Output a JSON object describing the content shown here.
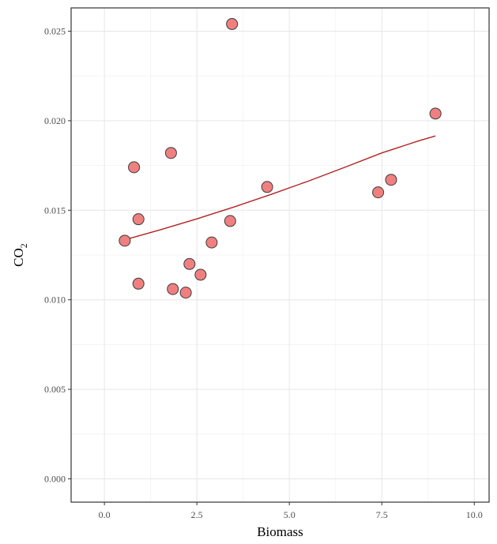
{
  "chart_data": {
    "type": "scatter",
    "title": "",
    "xlabel": "Biomass",
    "ylabel": "CO",
    "ylabel_subscript": "2",
    "xlim": [
      -0.9,
      10.4
    ],
    "ylim": [
      -0.0013,
      0.0263
    ],
    "x_ticks": [
      0.0,
      2.5,
      5.0,
      7.5,
      10.0
    ],
    "x_tick_labels": [
      "0.0",
      "2.5",
      "5.0",
      "7.5",
      "10.0"
    ],
    "y_ticks": [
      0.0,
      0.005,
      0.01,
      0.015,
      0.02,
      0.025
    ],
    "y_tick_labels": [
      "0.000",
      "0.005",
      "0.010",
      "0.015",
      "0.020",
      "0.025"
    ],
    "grid": true,
    "legend": "none",
    "point_color": "#f08080",
    "point_edge_color": "#3a3a3a",
    "line_color": "#b22222",
    "points": [
      {
        "x": 0.55,
        "y": 0.0133
      },
      {
        "x": 0.8,
        "y": 0.0174
      },
      {
        "x": 0.92,
        "y": 0.0145
      },
      {
        "x": 0.92,
        "y": 0.0109
      },
      {
        "x": 1.8,
        "y": 0.0182
      },
      {
        "x": 1.85,
        "y": 0.0106
      },
      {
        "x": 2.2,
        "y": 0.0104
      },
      {
        "x": 2.3,
        "y": 0.012
      },
      {
        "x": 2.6,
        "y": 0.0114
      },
      {
        "x": 2.9,
        "y": 0.0132
      },
      {
        "x": 3.4,
        "y": 0.0144
      },
      {
        "x": 3.45,
        "y": 0.0254
      },
      {
        "x": 4.4,
        "y": 0.0163
      },
      {
        "x": 7.4,
        "y": 0.016
      },
      {
        "x": 7.75,
        "y": 0.0167
      },
      {
        "x": 8.95,
        "y": 0.0204
      }
    ],
    "fit_line": {
      "x": [
        0.55,
        1.5,
        2.5,
        3.5,
        4.5,
        5.5,
        6.5,
        7.5,
        8.5,
        8.95
      ],
      "y": [
        0.01335,
        0.0139,
        0.01452,
        0.01518,
        0.01588,
        0.01662,
        0.0174,
        0.0182,
        0.01888,
        0.01915
      ]
    }
  }
}
